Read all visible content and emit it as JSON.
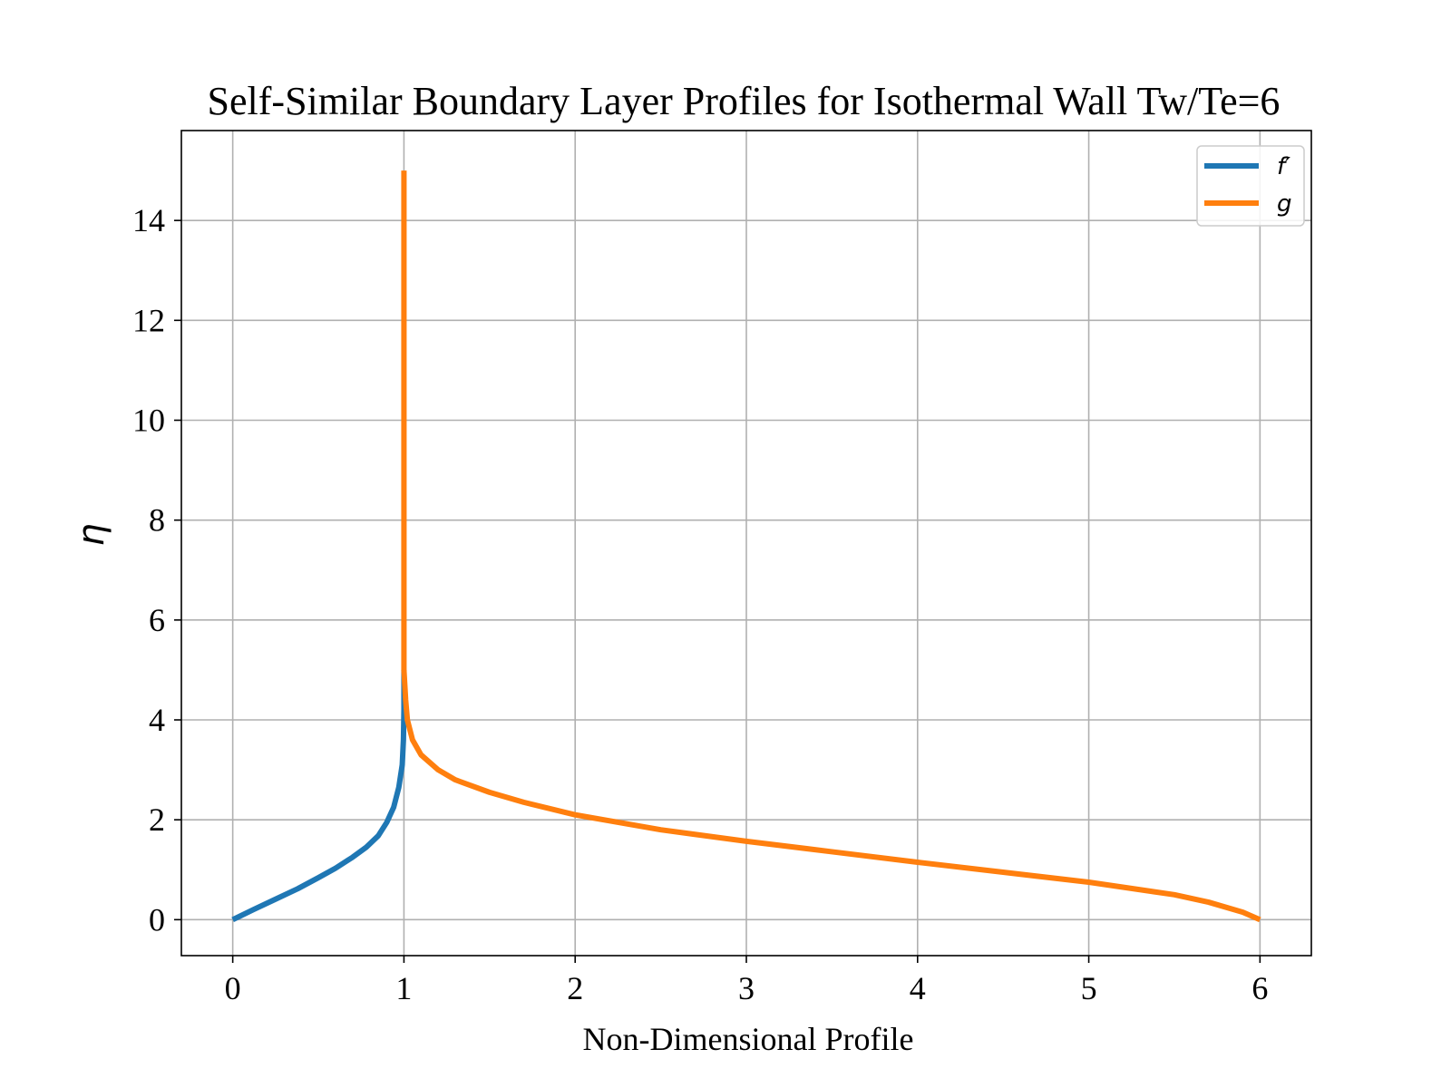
{
  "chart_data": {
    "type": "line",
    "title": "Self-Similar Boundary Layer Profiles for Isothermal Wall Tw/Te=6",
    "xlabel": "Non-Dimensional Profile",
    "ylabel": "η",
    "xlim": [
      -0.3,
      6.3
    ],
    "ylim": [
      -0.72,
      15.8
    ],
    "xticks": [
      0,
      1,
      2,
      3,
      4,
      5,
      6
    ],
    "yticks": [
      0,
      2,
      4,
      6,
      8,
      10,
      12,
      14
    ],
    "grid": true,
    "legend_position": "top-right",
    "series": [
      {
        "name": "f′",
        "color": "#1f77b4",
        "points": [
          [
            0.0,
            0.0
          ],
          [
            0.12,
            0.2
          ],
          [
            0.25,
            0.41
          ],
          [
            0.38,
            0.62
          ],
          [
            0.5,
            0.84
          ],
          [
            0.6,
            1.03
          ],
          [
            0.7,
            1.25
          ],
          [
            0.78,
            1.45
          ],
          [
            0.85,
            1.68
          ],
          [
            0.9,
            1.95
          ],
          [
            0.94,
            2.25
          ],
          [
            0.97,
            2.65
          ],
          [
            0.99,
            3.1
          ],
          [
            0.997,
            3.6
          ],
          [
            1.0,
            4.2
          ],
          [
            1.0,
            4.6
          ],
          [
            1.0,
            5.0
          ]
        ]
      },
      {
        "name": "g",
        "color": "#ff7f0e",
        "points": [
          [
            6.0,
            0.0
          ],
          [
            5.9,
            0.15
          ],
          [
            5.7,
            0.35
          ],
          [
            5.5,
            0.5
          ],
          [
            5.0,
            0.75
          ],
          [
            4.5,
            0.95
          ],
          [
            4.0,
            1.15
          ],
          [
            3.5,
            1.36
          ],
          [
            3.0,
            1.57
          ],
          [
            2.5,
            1.8
          ],
          [
            2.0,
            2.1
          ],
          [
            1.7,
            2.35
          ],
          [
            1.5,
            2.55
          ],
          [
            1.3,
            2.8
          ],
          [
            1.2,
            3.0
          ],
          [
            1.1,
            3.3
          ],
          [
            1.05,
            3.6
          ],
          [
            1.02,
            4.0
          ],
          [
            1.01,
            4.4
          ],
          [
            1.0,
            5.0
          ],
          [
            1.0,
            8.0
          ],
          [
            1.0,
            12.0
          ],
          [
            1.0,
            15.0
          ]
        ]
      }
    ]
  }
}
